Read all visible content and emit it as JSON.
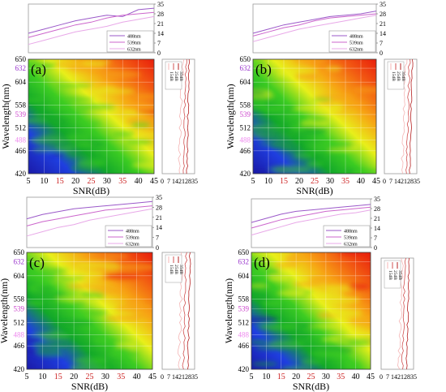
{
  "colors": {
    "line488": "#9b59c9",
    "line539": "#cc66cc",
    "line632": "#e8a8e8",
    "side15": "#f5b5b5",
    "side25": "#d05050",
    "side35": "#b52020",
    "highlight488": "#ee88ee",
    "highlight539": "#cc44cc",
    "highlight632": "#9933cc"
  },
  "chart_data": [
    {
      "type": "heatmap",
      "panel_label": "(a)",
      "xlabel": "SNR(dB)",
      "ylabel": "Wavelength(nm)",
      "xticks": [
        "5",
        "10",
        "15",
        "20",
        "25",
        "30",
        "35",
        "40",
        "45"
      ],
      "yticks": [
        "420",
        "466",
        "488",
        "512",
        "539",
        "558",
        "604",
        "632",
        "650"
      ],
      "xlim": [
        5,
        45
      ],
      "ylim": [
        420,
        650
      ],
      "top_inset": {
        "type": "line",
        "yticks": [
          "0",
          "7",
          "14",
          "21",
          "28",
          "35"
        ],
        "ylim": [
          0,
          35
        ],
        "legend": [
          "488nm",
          "539nm",
          "632nm"
        ],
        "series": [
          {
            "name": "488nm",
            "values": [
              14,
              17,
              20,
              23,
              25,
              27,
              26,
              31,
              32
            ]
          },
          {
            "name": "539nm",
            "values": [
              11,
              14,
              17,
              20,
              22,
              25,
              27,
              28,
              29
            ]
          },
          {
            "name": "632nm",
            "values": [
              6,
              9,
              12,
              15,
              17,
              19,
              22,
              24,
              26
            ]
          }
        ]
      },
      "side_inset": {
        "type": "line",
        "xticks": [
          "0",
          "7",
          "14",
          "21",
          "28",
          "35"
        ],
        "xlim": [
          0,
          35
        ],
        "legend": [
          "35dB",
          "25dB",
          "15dB"
        ],
        "series": [
          {
            "name": "35dB",
            "center": 29,
            "spread": 3
          },
          {
            "name": "25dB",
            "center": 26,
            "spread": 4
          },
          {
            "name": "15dB",
            "center": 22,
            "spread": 5
          }
        ]
      }
    },
    {
      "type": "heatmap",
      "panel_label": "(b)",
      "xlabel": "SNR(dB)",
      "ylabel": "Wavelength(nm)",
      "xticks": [
        "5",
        "10",
        "15",
        "20",
        "25",
        "30",
        "35",
        "40",
        "45"
      ],
      "yticks": [
        "420",
        "466",
        "488",
        "512",
        "539",
        "558",
        "604",
        "632",
        "650"
      ],
      "xlim": [
        5,
        45
      ],
      "ylim": [
        420,
        650
      ],
      "top_inset": {
        "type": "line",
        "yticks": [
          "0",
          "7",
          "14",
          "21",
          "28",
          "35"
        ],
        "ylim": [
          0,
          35
        ],
        "legend": [
          "488nm",
          "539nm",
          "632nm"
        ],
        "series": [
          {
            "name": "488nm",
            "values": [
              14,
              17,
              20,
              22,
              24,
              26,
              27,
              28,
              30
            ]
          },
          {
            "name": "539nm",
            "values": [
              12,
              15,
              18,
              20,
              23,
              25,
              26,
              27,
              28
            ]
          },
          {
            "name": "632nm",
            "values": [
              8,
              11,
              14,
              17,
              19,
              21,
              23,
              25,
              27
            ]
          }
        ]
      },
      "side_inset": {
        "type": "line",
        "xticks": [
          "0",
          "7",
          "14",
          "21",
          "28",
          "35"
        ],
        "xlim": [
          0,
          35
        ],
        "legend": [
          "35dB",
          "25dB",
          "15dB"
        ],
        "series": [
          {
            "name": "35dB",
            "center": 30,
            "spread": 3
          },
          {
            "name": "25dB",
            "center": 27,
            "spread": 4
          },
          {
            "name": "15dB",
            "center": 23,
            "spread": 5
          }
        ]
      }
    },
    {
      "type": "heatmap",
      "panel_label": "(c)",
      "xlabel": "SNR(dB)",
      "ylabel": "Wavelength(nm)",
      "xticks": [
        "5",
        "10",
        "15",
        "20",
        "25",
        "30",
        "35",
        "40",
        "45"
      ],
      "yticks": [
        "420",
        "466",
        "488",
        "512",
        "539",
        "558",
        "604",
        "632",
        "650"
      ],
      "xlim": [
        5,
        45
      ],
      "ylim": [
        420,
        650
      ],
      "top_inset": {
        "type": "line",
        "yticks": [
          "0",
          "7",
          "14",
          "21",
          "28",
          "35"
        ],
        "ylim": [
          0,
          35
        ],
        "legend": [
          "488nm",
          "539nm",
          "632nm"
        ],
        "series": [
          {
            "name": "488nm",
            "values": [
              20,
              23,
              25,
              27,
              28,
              29,
              30,
              31,
              32
            ]
          },
          {
            "name": "539nm",
            "values": [
              15,
              18,
              20,
              22,
              24,
              26,
              27,
              28,
              29
            ]
          },
          {
            "name": "632nm",
            "values": [
              8,
              11,
              14,
              16,
              19,
              21,
              23,
              25,
              27
            ]
          }
        ]
      },
      "side_inset": {
        "type": "line",
        "xticks": [
          "0",
          "7",
          "14",
          "21",
          "28",
          "35"
        ],
        "xlim": [
          0,
          35
        ],
        "legend": [
          "35dB",
          "25dB",
          "15dB"
        ],
        "series": [
          {
            "name": "35dB",
            "center": 30,
            "spread": 3
          },
          {
            "name": "25dB",
            "center": 26,
            "spread": 4
          },
          {
            "name": "15dB",
            "center": 22,
            "spread": 5
          }
        ]
      }
    },
    {
      "type": "heatmap",
      "panel_label": "(d)",
      "xlabel": "SNR(dB)",
      "ylabel": "Wavelength(nm)",
      "xticks": [
        "5",
        "10",
        "15",
        "20",
        "25",
        "30",
        "35",
        "40",
        "45"
      ],
      "yticks": [
        "420",
        "466",
        "488",
        "512",
        "539",
        "558",
        "604",
        "632",
        "650"
      ],
      "xlim": [
        5,
        45
      ],
      "ylim": [
        420,
        650
      ],
      "top_inset": {
        "type": "line",
        "yticks": [
          "0",
          "7",
          "14",
          "21",
          "28",
          "35"
        ],
        "ylim": [
          0,
          35
        ],
        "legend": [
          "488nm",
          "539nm",
          "632nm"
        ],
        "series": [
          {
            "name": "488nm",
            "values": [
              18,
              21,
              24,
              26,
              27,
              28,
              29,
              30,
              31
            ]
          },
          {
            "name": "539nm",
            "values": [
              14,
              17,
              20,
              22,
              24,
              26,
              27,
              28,
              29
            ]
          },
          {
            "name": "632nm",
            "values": [
              9,
              12,
              15,
              18,
              20,
              22,
              24,
              25,
              27
            ]
          }
        ]
      },
      "side_inset": {
        "type": "line",
        "xticks": [
          "0",
          "7",
          "14",
          "21",
          "28",
          "35"
        ],
        "xlim": [
          0,
          35
        ],
        "legend": [
          "35dB",
          "25dB",
          "15dB"
        ],
        "series": [
          {
            "name": "35dB",
            "center": 30,
            "spread": 3
          },
          {
            "name": "25dB",
            "center": 26,
            "spread": 4
          },
          {
            "name": "15dB",
            "center": 23,
            "spread": 5
          }
        ]
      }
    }
  ]
}
